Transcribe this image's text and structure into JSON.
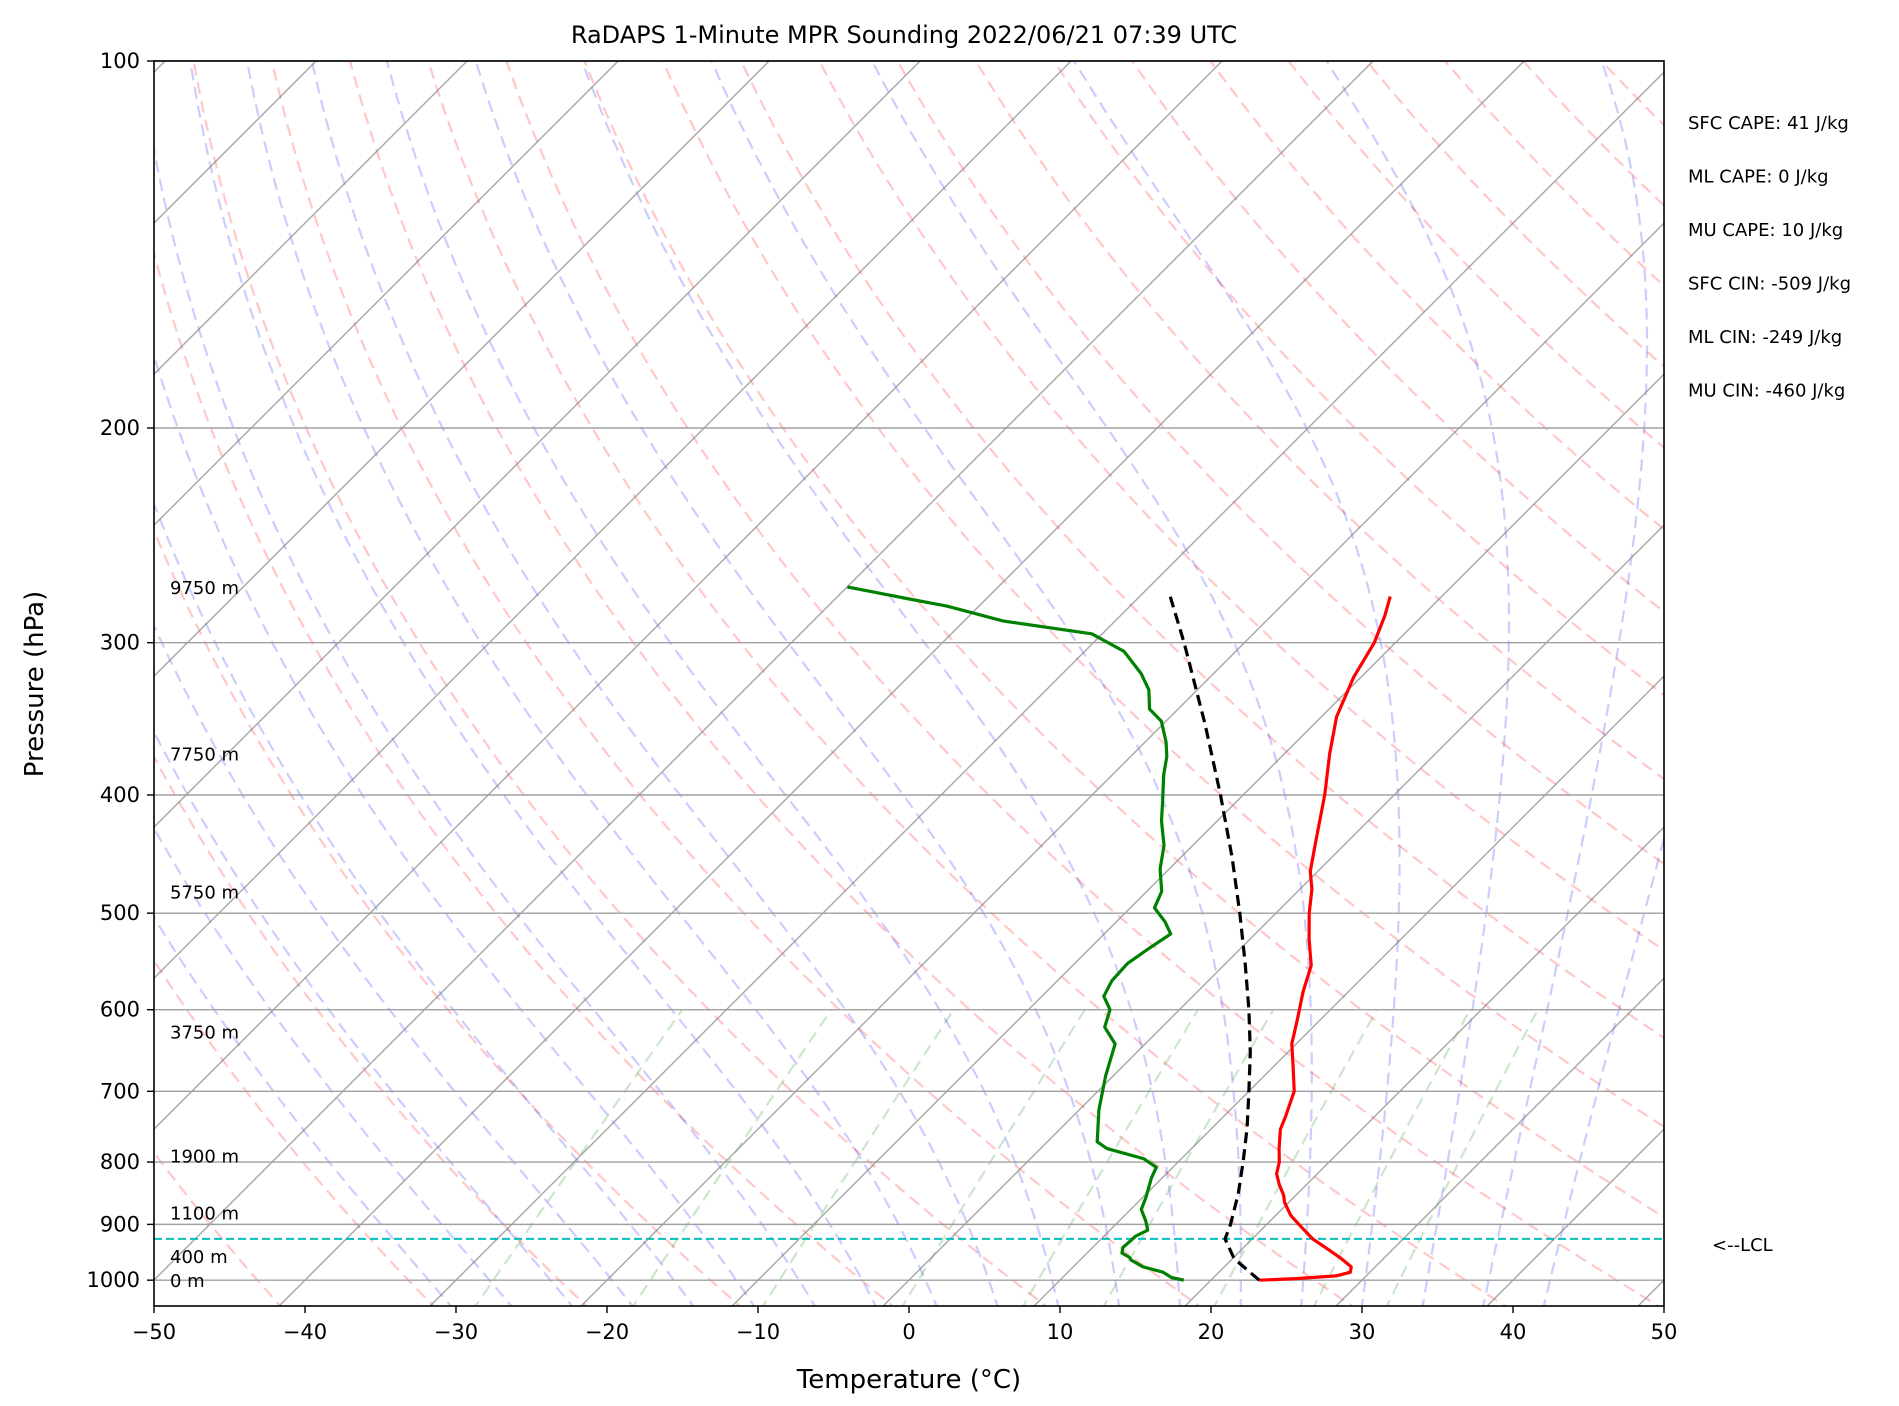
{
  "chart_data": {
    "type": "line",
    "subtype": "skew-t log-p diagram",
    "title": "RaDAPS 1-Minute MPR Sounding 2022/06/21 07:39 UTC",
    "xlabel": "Temperature (°C)",
    "ylabel": "Pressure (hPa)",
    "xlim": [
      -50,
      50
    ],
    "ylim": [
      1050,
      100
    ],
    "y_scale": "log",
    "x_ticks": [
      -50,
      -40,
      -30,
      -20,
      -10,
      0,
      10,
      20,
      30,
      40,
      50
    ],
    "x_tick_labels": [
      "−50",
      "−40",
      "−30",
      "−20",
      "−10",
      "0",
      "10",
      "20",
      "30",
      "40",
      "50"
    ],
    "y_ticks": [
      100,
      200,
      300,
      400,
      500,
      600,
      700,
      800,
      900,
      1000
    ],
    "y_tick_labels": [
      "100",
      "200",
      "300",
      "400",
      "500",
      "600",
      "700",
      "800",
      "900",
      "1000"
    ],
    "grid": true,
    "series": [
      {
        "key": "temperature",
        "color": "#ff0000",
        "style": "solid",
        "points": [
          [
            1000,
            23.2
          ],
          [
            997,
            25.5
          ],
          [
            992,
            28.0
          ],
          [
            985,
            28.7
          ],
          [
            975,
            28.4
          ],
          [
            960,
            27.2
          ],
          [
            940,
            25.4
          ],
          [
            925,
            24.0
          ],
          [
            905,
            22.5
          ],
          [
            885,
            21.0
          ],
          [
            863,
            19.7
          ],
          [
            852,
            19.2
          ],
          [
            835,
            18.2
          ],
          [
            818,
            17.3
          ],
          [
            800,
            16.7
          ],
          [
            780,
            15.8
          ],
          [
            752,
            14.6
          ],
          [
            734,
            14.1
          ],
          [
            700,
            13.0
          ],
          [
            670,
            11.4
          ],
          [
            640,
            9.7
          ],
          [
            610,
            8.4
          ],
          [
            580,
            7.0
          ],
          [
            552,
            5.8
          ],
          [
            525,
            3.9
          ],
          [
            500,
            2.2
          ],
          [
            478,
            0.8
          ],
          [
            462,
            -0.5
          ],
          [
            440,
            -1.9
          ],
          [
            400,
            -4.6
          ],
          [
            370,
            -7.0
          ],
          [
            345,
            -9.0
          ],
          [
            320,
            -10.5
          ],
          [
            300,
            -11.4
          ],
          [
            285,
            -12.5
          ],
          [
            275,
            -13.4
          ]
        ]
      },
      {
        "key": "dewpoint",
        "color": "#008000",
        "style": "solid",
        "points": [
          [
            1000,
            18.2
          ],
          [
            995,
            17.2
          ],
          [
            985,
            16.3
          ],
          [
            975,
            14.6
          ],
          [
            963,
            13.4
          ],
          [
            958,
            13.1
          ],
          [
            950,
            12.3
          ],
          [
            940,
            12.0
          ],
          [
            920,
            12.1
          ],
          [
            910,
            12.5
          ],
          [
            895,
            11.8
          ],
          [
            875,
            10.7
          ],
          [
            855,
            10.2
          ],
          [
            825,
            9.3
          ],
          [
            808,
            8.9
          ],
          [
            795,
            7.5
          ],
          [
            780,
            4.4
          ],
          [
            770,
            3.3
          ],
          [
            725,
            1.3
          ],
          [
            680,
            -0.5
          ],
          [
            640,
            -2.0
          ],
          [
            620,
            -3.8
          ],
          [
            600,
            -4.6
          ],
          [
            585,
            -5.9
          ],
          [
            568,
            -6.4
          ],
          [
            550,
            -6.5
          ],
          [
            535,
            -6.1
          ],
          [
            520,
            -5.6
          ],
          [
            508,
            -6.8
          ],
          [
            495,
            -8.4
          ],
          [
            480,
            -9.0
          ],
          [
            460,
            -10.6
          ],
          [
            440,
            -11.9
          ],
          [
            420,
            -13.7
          ],
          [
            405,
            -14.9
          ],
          [
            385,
            -16.6
          ],
          [
            372,
            -17.6
          ],
          [
            362,
            -18.6
          ],
          [
            348,
            -20.3
          ],
          [
            340,
            -21.9
          ],
          [
            328,
            -23.2
          ],
          [
            318,
            -24.8
          ],
          [
            305,
            -27.4
          ],
          [
            295,
            -30.7
          ],
          [
            288,
            -37.4
          ],
          [
            280,
            -42.1
          ],
          [
            276,
            -45.3
          ],
          [
            270,
            -50.0
          ]
        ]
      },
      {
        "key": "parcel",
        "color": "#000000",
        "style": "dashed",
        "points": [
          [
            1000,
            23.2
          ],
          [
            960,
            20.1
          ],
          [
            925,
            18.2
          ],
          [
            900,
            17.6
          ],
          [
            850,
            16.1
          ],
          [
            800,
            14.3
          ],
          [
            750,
            12.3
          ],
          [
            700,
            10.0
          ],
          [
            650,
            7.5
          ],
          [
            600,
            4.6
          ],
          [
            550,
            1.3
          ],
          [
            500,
            -2.4
          ],
          [
            450,
            -6.6
          ],
          [
            400,
            -11.5
          ],
          [
            350,
            -17.2
          ],
          [
            300,
            -24.0
          ],
          [
            273,
            -28.3
          ]
        ]
      }
    ],
    "reference_lines": {
      "isotherms_color": "#808080",
      "dry_adiabats_color": "#ff0000",
      "moist_adiabats_color": "#0000ff",
      "mixing_ratio_color": "#008000",
      "lcl_line_color": "#00bfbf"
    },
    "height_labels": [
      {
        "text": "9750 m",
        "p": 270
      },
      {
        "text": "7750 m",
        "p": 370
      },
      {
        "text": "5750 m",
        "p": 480
      },
      {
        "text": "3750 m",
        "p": 625
      },
      {
        "text": "1900 m",
        "p": 790
      },
      {
        "text": "1100 m",
        "p": 880
      },
      {
        "text": "400 m",
        "p": 955
      },
      {
        "text": "0 m",
        "p": 1000
      }
    ],
    "lcl": {
      "p": 925,
      "label": "<--LCL"
    },
    "annotations": [
      "SFC CAPE: 41 J/kg",
      "ML CAPE: 0 J/kg",
      "MU CAPE: 10 J/kg",
      "SFC CIN: -509 J/kg",
      "ML CIN: -249 J/kg",
      "MU CIN: -460 J/kg"
    ]
  }
}
